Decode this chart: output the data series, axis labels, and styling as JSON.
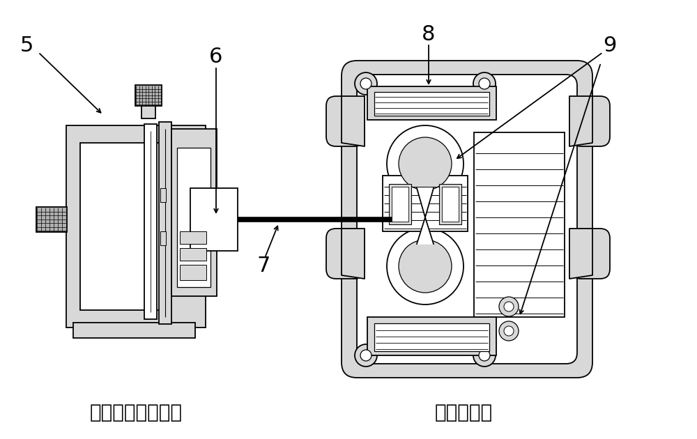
{
  "label_left": "光纤夹持调整装置",
  "label_right": "光纤熔接机",
  "bg_color": "#ffffff",
  "line_color": "#000000",
  "light_gray": "#d8d8d8",
  "mid_gray": "#b0b0b0",
  "fiber_color": "#1a1a1a"
}
